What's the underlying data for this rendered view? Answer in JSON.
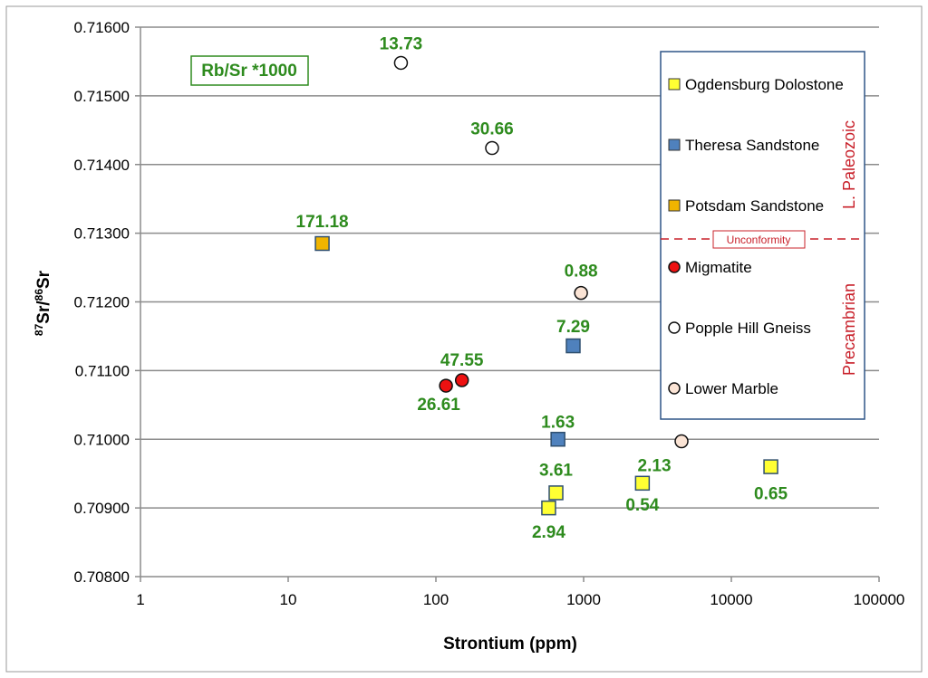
{
  "chart_data": {
    "type": "scatter",
    "title": "",
    "xlabel": "Strontium (ppm)",
    "ylabel_parts": [
      "87",
      "Sr/",
      "86",
      "Sr"
    ],
    "x_scale": "log",
    "xlim": [
      1,
      100000
    ],
    "ylim": [
      0.708,
      0.716
    ],
    "x_ticks": [
      "1",
      "10",
      "100",
      "1000",
      "10000",
      "100000"
    ],
    "y_ticks": [
      "0.71600",
      "0.71500",
      "0.71400",
      "0.71300",
      "0.71200",
      "0.71100",
      "0.71000",
      "0.70900",
      "0.70800"
    ],
    "grid": "horizontal",
    "annotation_box": "Rb/Sr *1000",
    "legend": {
      "placement": "right",
      "entries": [
        {
          "name": "Ogdensburg Dolostone",
          "color": "#ffff33",
          "marker": "square"
        },
        {
          "name": "Theresa Sandstone",
          "color": "#4f81bd",
          "marker": "square"
        },
        {
          "name": "Potsdam Sandstone",
          "color": "#f0b400",
          "marker": "square"
        },
        {
          "name": "Migmatite",
          "color": "#ee1111",
          "marker": "circle"
        },
        {
          "name": "Popple Hill Gneiss",
          "color": "#ffffff",
          "marker": "circle"
        },
        {
          "name": "Lower Marble",
          "color": "#fbe4d5",
          "marker": "circle"
        }
      ],
      "divider_label": "Unconformity",
      "era_upper": "L. Paleozoic",
      "era_lower": "Precambrian"
    },
    "series": [
      {
        "legend_ref": "Ogdensburg Dolostone",
        "marker": "square",
        "color": "#ffff33",
        "points": [
          {
            "x": 580,
            "y": 0.709,
            "label": "2.94"
          },
          {
            "x": 650,
            "y": 0.70922,
            "label": "3.61"
          },
          {
            "x": 2500,
            "y": 0.70936,
            "label": "0.54"
          },
          {
            "x": 18500,
            "y": 0.7096,
            "label": "0.65"
          }
        ]
      },
      {
        "legend_ref": "Theresa Sandstone",
        "marker": "square",
        "color": "#4f81bd",
        "points": [
          {
            "x": 850,
            "y": 0.71136,
            "label": "7.29"
          },
          {
            "x": 670,
            "y": 0.71,
            "label": "1.63"
          }
        ]
      },
      {
        "legend_ref": "Potsdam Sandstone",
        "marker": "square",
        "color": "#f0b400",
        "points": [
          {
            "x": 17,
            "y": 0.71285,
            "label": "171.18"
          }
        ]
      },
      {
        "legend_ref": "Migmatite",
        "marker": "circle",
        "color": "#ee1111",
        "points": [
          {
            "x": 150,
            "y": 0.71086,
            "label": "47.55"
          },
          {
            "x": 117,
            "y": 0.71078,
            "label": "26.61"
          }
        ]
      },
      {
        "legend_ref": "Popple Hill Gneiss",
        "marker": "circle",
        "color": "#ffffff",
        "points": [
          {
            "x": 58,
            "y": 0.71548,
            "label": "13.73"
          },
          {
            "x": 240,
            "y": 0.71424,
            "label": "30.66"
          }
        ]
      },
      {
        "legend_ref": "Lower Marble",
        "marker": "circle",
        "color": "#fbe4d5",
        "points": [
          {
            "x": 960,
            "y": 0.71213,
            "label": "0.88"
          },
          {
            "x": 4600,
            "y": 0.70997,
            "label": "2.13"
          }
        ]
      }
    ]
  }
}
